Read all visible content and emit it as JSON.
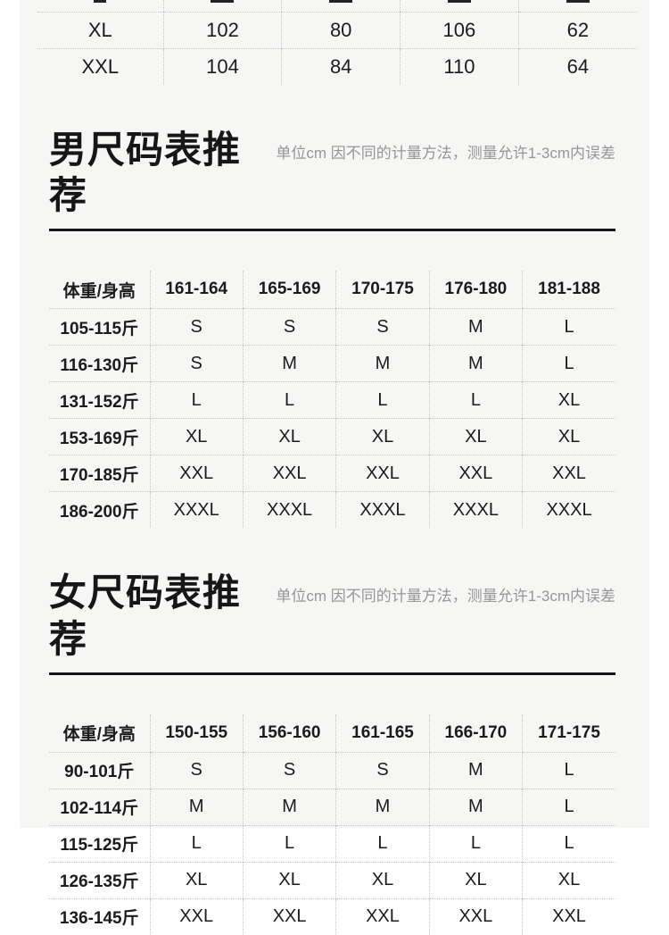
{
  "colors": {
    "page_bg": "#ffffff",
    "panel_bg": "#f6f6f5",
    "text": "#1b1b1b",
    "note_text": "#969696",
    "divider_dotted": "#c5c5c5",
    "heading_rule": "#151515"
  },
  "top_table": {
    "rows": [
      {
        "label": "XL",
        "values": [
          "102",
          "80",
          "106",
          "62"
        ]
      },
      {
        "label": "XXL",
        "values": [
          "104",
          "84",
          "110",
          "64"
        ]
      }
    ]
  },
  "men_section": {
    "title": "男尺码表推荐",
    "note": "单位cm 因不同的计量方法，测量允许1-3cm内误差",
    "table": {
      "header": [
        "体重/身高",
        "161-164",
        "165-169",
        "170-175",
        "176-180",
        "181-188"
      ],
      "rows": [
        {
          "label": "105-115斤",
          "values": [
            "S",
            "S",
            "S",
            "M",
            "L"
          ]
        },
        {
          "label": "116-130斤",
          "values": [
            "S",
            "M",
            "M",
            "M",
            "L"
          ]
        },
        {
          "label": "131-152斤",
          "values": [
            "L",
            "L",
            "L",
            "L",
            "XL"
          ]
        },
        {
          "label": "153-169斤",
          "values": [
            "XL",
            "XL",
            "XL",
            "XL",
            "XL"
          ]
        },
        {
          "label": "170-185斤",
          "values": [
            "XXL",
            "XXL",
            "XXL",
            "XXL",
            "XXL"
          ]
        },
        {
          "label": "186-200斤",
          "values": [
            "XXXL",
            "XXXL",
            "XXXL",
            "XXXL",
            "XXXL"
          ]
        }
      ]
    }
  },
  "women_section": {
    "title": "女尺码表推荐",
    "note": "单位cm 因不同的计量方法，测量允许1-3cm内误差",
    "table": {
      "header": [
        "体重/身高",
        "150-155",
        "156-160",
        "161-165",
        "166-170",
        "171-175"
      ],
      "rows": [
        {
          "label": "90-101斤",
          "values": [
            "S",
            "S",
            "S",
            "M",
            "L"
          ]
        },
        {
          "label": "102-114斤",
          "values": [
            "M",
            "M",
            "M",
            "M",
            "L"
          ]
        },
        {
          "label": "115-125斤",
          "values": [
            "L",
            "L",
            "L",
            "L",
            "L"
          ]
        },
        {
          "label": "126-135斤",
          "values": [
            "XL",
            "XL",
            "XL",
            "XL",
            "XL"
          ]
        },
        {
          "label": "136-145斤",
          "values": [
            "XXL",
            "XXL",
            "XXL",
            "XXL",
            "XXL"
          ]
        }
      ]
    }
  }
}
